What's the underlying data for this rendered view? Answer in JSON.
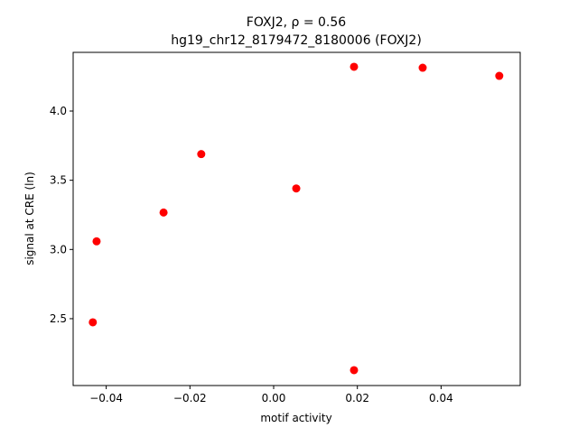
{
  "chart_data": {
    "type": "scatter",
    "title": "FOXJ2, ρ = 0.56",
    "subtitle": "hg19_chr12_8179472_8180006 (FOXJ2)",
    "x_label": "motif activity",
    "y_label": "signal at CRE (ln)",
    "color": "#ff0000",
    "x": [
      -0.0432,
      -0.0423,
      -0.0263,
      -0.0173,
      0.0054,
      0.0192,
      0.0192,
      0.0356,
      0.0539
    ],
    "values": [
      2.474,
      3.059,
      3.267,
      3.689,
      3.441,
      4.32,
      2.128,
      4.313,
      4.254
    ],
    "xlim": [
      -0.0479,
      0.0589
    ],
    "ylim": [
      2.017,
      4.424
    ],
    "xticks": [
      {
        "value": -0.04,
        "label": "−0.04"
      },
      {
        "value": -0.02,
        "label": "−0.02"
      },
      {
        "value": 0,
        "label": "0.00"
      },
      0.02,
      0.04
    ],
    "yticks": [
      2.5,
      {
        "value": 3,
        "label": "3.0"
      },
      3.5,
      {
        "value": 4,
        "label": "4.0"
      }
    ]
  }
}
